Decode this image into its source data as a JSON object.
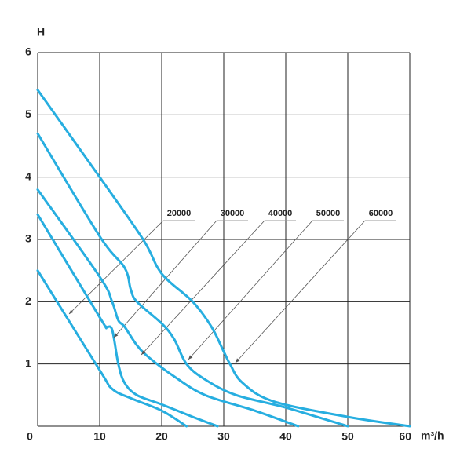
{
  "chart_data": {
    "type": "line",
    "y_label": "H",
    "x_label": "m³/h",
    "xlim": [
      0,
      60
    ],
    "ylim": [
      0,
      6
    ],
    "xticks": [
      0,
      10,
      20,
      30,
      40,
      50,
      60
    ],
    "yticks": [
      0,
      1,
      2,
      3,
      4,
      5,
      6
    ],
    "grid": true,
    "series": [
      {
        "name": "20000",
        "color": "#27aee0",
        "x": [
          0,
          10,
          12,
          15,
          20,
          24
        ],
        "values": [
          2.5,
          0.9,
          0.6,
          0.45,
          0.25,
          0
        ]
      },
      {
        "name": "30000",
        "color": "#27aee0",
        "x": [
          0,
          10,
          11,
          12,
          13,
          14,
          16,
          20,
          25,
          29
        ],
        "values": [
          3.4,
          1.75,
          1.6,
          1.55,
          1.0,
          0.7,
          0.5,
          0.35,
          0.15,
          0
        ]
      },
      {
        "name": "40000",
        "color": "#27aee0",
        "x": [
          0,
          10,
          12,
          13,
          14,
          16,
          18,
          22,
          27,
          35,
          42
        ],
        "values": [
          3.8,
          2.4,
          2.0,
          1.7,
          1.6,
          1.3,
          1.1,
          0.8,
          0.5,
          0.25,
          0
        ]
      },
      {
        "name": "50000",
        "color": "#27aee0",
        "x": [
          0,
          10,
          14,
          15,
          16,
          20,
          22,
          24,
          27,
          32,
          40,
          50
        ],
        "values": [
          4.7,
          3.05,
          2.55,
          2.2,
          2.0,
          1.65,
          1.4,
          1.0,
          0.75,
          0.5,
          0.3,
          0
        ]
      },
      {
        "name": "60000",
        "color": "#27aee0",
        "x": [
          0,
          10,
          17,
          20,
          25,
          28,
          30,
          31,
          33,
          38,
          50,
          60
        ],
        "values": [
          5.4,
          4.0,
          3.0,
          2.45,
          2.0,
          1.6,
          1.2,
          1.0,
          0.7,
          0.4,
          0.15,
          0
        ]
      }
    ]
  }
}
